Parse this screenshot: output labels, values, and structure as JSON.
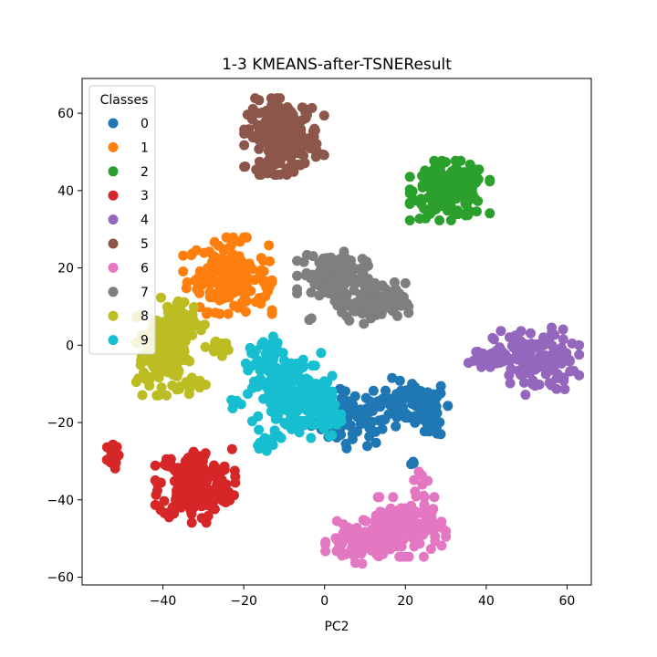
{
  "chart_data": {
    "type": "scatter",
    "title": "1-3 KMEANS-after-TSNEResult",
    "xlabel": "PC2",
    "ylabel": "",
    "xlim": [
      -60,
      66
    ],
    "ylim": [
      -62,
      69
    ],
    "xticks": [
      -40,
      -20,
      0,
      20,
      40,
      60
    ],
    "yticks": [
      -60,
      -40,
      -20,
      0,
      20,
      40,
      60
    ],
    "xtick_labels": [
      "−40",
      "−20",
      "0",
      "20",
      "40",
      "60"
    ],
    "ytick_labels": [
      "−60",
      "−40",
      "−20",
      "0",
      "20",
      "40",
      "60"
    ],
    "grid": false,
    "legend": {
      "title": "Classes",
      "placement": "top-left"
    },
    "series": [
      {
        "name": "0",
        "color": "#1f77b4",
        "clusters": [
          {
            "center": [
              7,
              -19
            ],
            "spread": [
              5,
              3.5
            ],
            "count": 80
          },
          {
            "center": [
              22,
              -15
            ],
            "spread": [
              4.5,
              3
            ],
            "count": 70
          },
          {
            "center": [
              28,
              -21
            ],
            "spread": [
              1.5,
              1.5
            ],
            "count": 12
          },
          {
            "center": [
              16,
              -14
            ],
            "spread": [
              2,
              1.5
            ],
            "count": 10
          },
          {
            "center": [
              22,
              -31
            ],
            "spread": [
              1,
              1
            ],
            "count": 3
          }
        ]
      },
      {
        "name": "1",
        "color": "#ff7f0e",
        "clusters": [
          {
            "center": [
              -24,
              18
            ],
            "spread": [
              5,
              4.5
            ],
            "count": 150
          },
          {
            "center": [
              -14,
              14
            ],
            "spread": [
              1.5,
              1.5
            ],
            "count": 8
          }
        ]
      },
      {
        "name": "2",
        "color": "#2ca02c",
        "clusters": [
          {
            "center": [
              31,
              40
            ],
            "spread": [
              4.5,
              3.5
            ],
            "count": 220
          }
        ]
      },
      {
        "name": "3",
        "color": "#d62728",
        "clusters": [
          {
            "center": [
              -32,
              -36
            ],
            "spread": [
              4.5,
              4.5
            ],
            "count": 200
          },
          {
            "center": [
              -53,
              -29
            ],
            "spread": [
              1,
              1.5
            ],
            "count": 14
          }
        ]
      },
      {
        "name": "4",
        "color": "#9467bd",
        "clusters": [
          {
            "center": [
              52,
              -4
            ],
            "spread": [
              5,
              4
            ],
            "count": 140
          },
          {
            "center": [
              40,
              -3
            ],
            "spread": [
              2,
              1.2
            ],
            "count": 25
          }
        ]
      },
      {
        "name": "5",
        "color": "#8c564b",
        "clusters": [
          {
            "center": [
              -10,
              54
            ],
            "spread": [
              4.5,
              4.5
            ],
            "count": 200
          }
        ]
      },
      {
        "name": "6",
        "color": "#e377c2",
        "clusters": [
          {
            "center": [
              19,
              -47
            ],
            "spread": [
              5,
              3.5
            ],
            "count": 150
          },
          {
            "center": [
              9,
              -51
            ],
            "spread": [
              4,
              2.5
            ],
            "count": 100
          },
          {
            "center": [
              24,
              -36
            ],
            "spread": [
              1.5,
              1.5
            ],
            "count": 8
          }
        ]
      },
      {
        "name": "7",
        "color": "#7f7f7f",
        "clusters": [
          {
            "center": [
              2,
              18
            ],
            "spread": [
              4,
              3
            ],
            "count": 130
          },
          {
            "center": [
              12,
              11
            ],
            "spread": [
              4,
              2.5
            ],
            "count": 100
          },
          {
            "center": [
              -4,
              7
            ],
            "spread": [
              0.5,
              0.5
            ],
            "count": 2
          }
        ]
      },
      {
        "name": "8",
        "color": "#bcbd22",
        "clusters": [
          {
            "center": [
              -40,
              -2
            ],
            "spread": [
              3,
              5
            ],
            "count": 150
          },
          {
            "center": [
              -35,
              6
            ],
            "spread": [
              2.5,
              3
            ],
            "count": 60
          },
          {
            "center": [
              -32,
              -10
            ],
            "spread": [
              1.5,
              1.2
            ],
            "count": 15
          },
          {
            "center": [
              -26,
              0
            ],
            "spread": [
              1,
              1.5
            ],
            "count": 12
          }
        ]
      },
      {
        "name": "9",
        "color": "#17becf",
        "clusters": [
          {
            "center": [
              -8,
              -13
            ],
            "spread": [
              4.5,
              5
            ],
            "count": 180
          },
          {
            "center": [
              -14,
              -6
            ],
            "spread": [
              2.5,
              4
            ],
            "count": 50
          },
          {
            "center": [
              1,
              -18
            ],
            "spread": [
              1.5,
              2.5
            ],
            "count": 40
          },
          {
            "center": [
              -14,
              -26
            ],
            "spread": [
              1.2,
              0.8
            ],
            "count": 8
          },
          {
            "center": [
              -22,
              -16
            ],
            "spread": [
              1,
              1
            ],
            "count": 6
          }
        ]
      }
    ]
  }
}
